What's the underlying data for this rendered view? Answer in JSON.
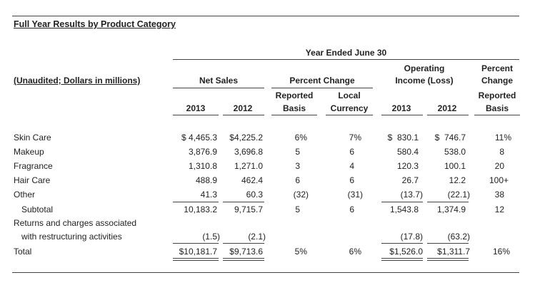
{
  "title": "Full Year Results by Product Category",
  "header": {
    "year_ended": "Year Ended June 30",
    "unaudited": "(Unaudited; Dollars in millions)",
    "net_sales": "Net Sales",
    "percent_change": "Percent Change",
    "reported": "Reported",
    "basis": "Basis",
    "local": "Local",
    "currency": "Currency",
    "operating": "Operating",
    "income_loss": "Income (Loss)",
    "percent": "Percent",
    "change": "Change",
    "reported2": "Reported",
    "basis2": "Basis",
    "y2013": "2013",
    "y2012": "2012",
    "oy2013": "2013",
    "oy2012": "2012"
  },
  "rows": [
    {
      "label": "Skin Care",
      "ns13": "$ 4,465.3",
      "ns12": "$4,225.2",
      "rep": "6%",
      "loc": "7%",
      "oi13": "$  830.1",
      "oi12": "$  746.7",
      "pct": "11%"
    },
    {
      "label": "Makeup",
      "ns13": "3,876.9",
      "ns12": "3,696.8",
      "rep": "5",
      "loc": "6",
      "oi13": "580.4",
      "oi12": "538.0",
      "pct": "8"
    },
    {
      "label": "Fragrance",
      "ns13": "1,310.8",
      "ns12": "1,271.0",
      "rep": "3",
      "loc": "4",
      "oi13": "120.3",
      "oi12": "100.1",
      "pct": "20"
    },
    {
      "label": "Hair Care",
      "ns13": "488.9",
      "ns12": "462.4",
      "rep": "6",
      "loc": "6",
      "oi13": "26.7",
      "oi12": "12.2",
      "pct": "100+"
    },
    {
      "label": "Other",
      "ns13": "41.3",
      "ns12": "60.3",
      "rep": "(32)",
      "loc": "(31)",
      "oi13": "(13.7)",
      "oi12": "(22.1)",
      "pct": "38"
    },
    {
      "label": "Subtotal",
      "ns13": "10,183.2",
      "ns12": "9,715.7",
      "rep": "5",
      "loc": "6",
      "oi13": "1,543.8",
      "oi12": "1,374.9",
      "pct": "12"
    },
    {
      "label": "Returns and charges associated",
      "label2": "with restructuring activities",
      "ns13": "(1.5)",
      "ns12": "(2.1)",
      "rep": "",
      "loc": "",
      "oi13": "(17.8)",
      "oi12": "(63.2)",
      "pct": ""
    },
    {
      "label": "Total",
      "ns13": "$10,181.7",
      "ns12": "$9,713.6",
      "rep": "5%",
      "loc": "6%",
      "oi13": "$1,526.0",
      "oi12": "$1,311.7",
      "pct": "16%"
    }
  ]
}
